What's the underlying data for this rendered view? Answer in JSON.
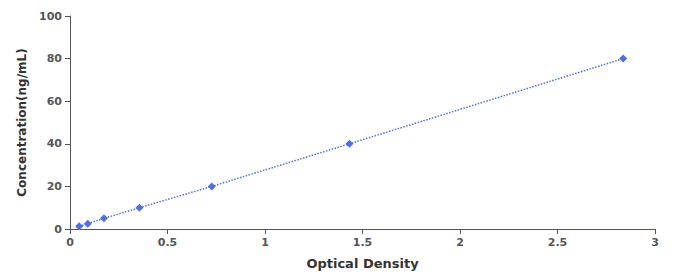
{
  "chart_data": {
    "type": "line",
    "x": [
      0.047,
      0.091,
      0.174,
      0.356,
      0.727,
      1.433,
      2.837
    ],
    "values": [
      1.25,
      2.5,
      5.0,
      10.0,
      20.0,
      40.0,
      80.0
    ],
    "xlabel": "Optical Density",
    "ylabel": "Concentration(ng/mL)",
    "xlim": [
      0,
      3
    ],
    "ylim": [
      0,
      100
    ],
    "xticks": [
      0,
      0.5,
      1,
      1.5,
      2,
      2.5,
      3
    ],
    "yticks": [
      0,
      20,
      40,
      60,
      80,
      100
    ],
    "marker": "diamond",
    "line_style": "dotted",
    "grid": false
  }
}
